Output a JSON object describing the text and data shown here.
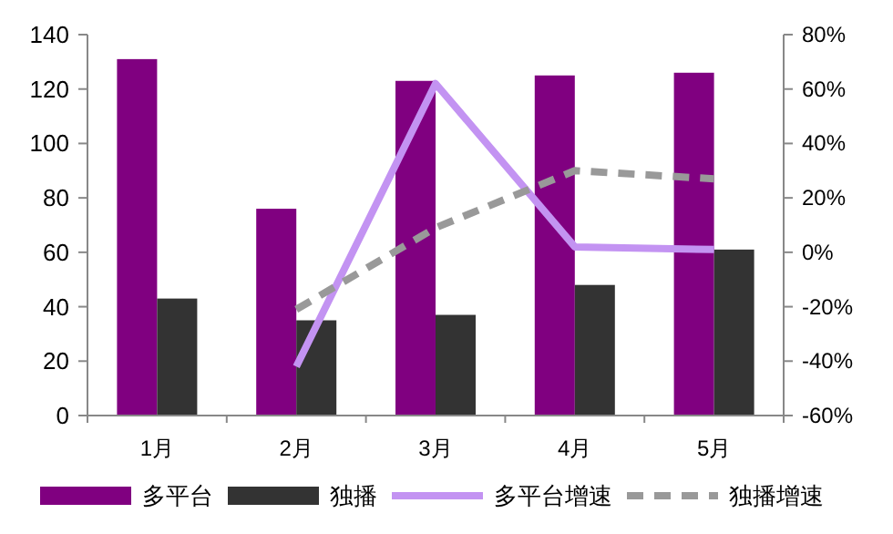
{
  "chart_data": {
    "type": "bar",
    "categories": [
      "1月",
      "2月",
      "3月",
      "4月",
      "5月"
    ],
    "series": [
      {
        "name": "多平台",
        "color": "#800080",
        "values": [
          131,
          76,
          123,
          125,
          126
        ]
      },
      {
        "name": "独播",
        "color": "#333333",
        "values": [
          43,
          35,
          37,
          48,
          61
        ]
      },
      {
        "name": "多平台增速",
        "type": "line",
        "axis": "y2",
        "color": "#c393f2",
        "line_style": "solid",
        "values": [
          null,
          -42,
          62,
          2,
          1
        ]
      },
      {
        "name": "独播增速",
        "type": "line",
        "axis": "y2",
        "color": "#999999",
        "line_style": "dashed",
        "values": [
          null,
          -21,
          9,
          30,
          27
        ]
      }
    ],
    "ylim": [
      0,
      140
    ],
    "yticks": [
      0,
      20,
      40,
      60,
      80,
      100,
      120,
      140
    ],
    "y2lim": [
      -60,
      80
    ],
    "y2ticks": [
      {
        "value": -60,
        "label": "-60%"
      },
      {
        "value": -40,
        "label": "-40%"
      },
      {
        "value": -20,
        "label": "-20%"
      },
      {
        "value": 0,
        "label": "0%"
      },
      {
        "value": 20,
        "label": "20%"
      },
      {
        "value": 40,
        "label": "40%"
      },
      {
        "value": 60,
        "label": "60%"
      },
      {
        "value": 80,
        "label": "80%"
      }
    ],
    "grid": false,
    "legend": "bottom"
  }
}
